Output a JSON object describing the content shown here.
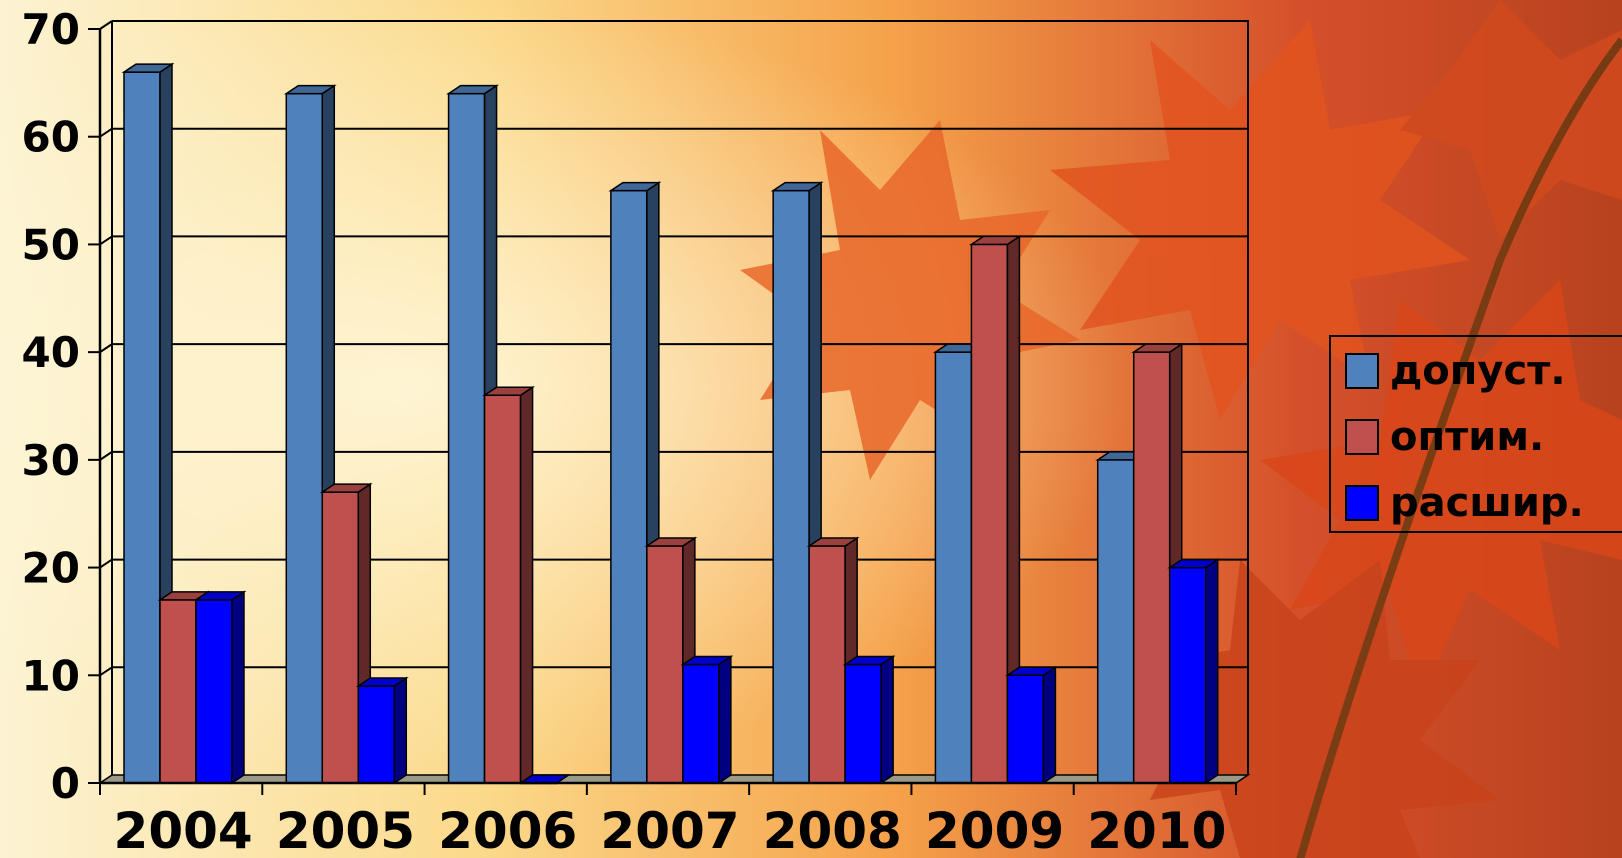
{
  "chart_data": {
    "type": "bar",
    "categories": [
      "2004",
      "2005",
      "2006",
      "2007",
      "2008",
      "2009",
      "2010"
    ],
    "series": [
      {
        "name": "допуст.",
        "values": [
          66,
          64,
          64,
          55,
          55,
          40,
          30
        ],
        "color": "#4F81BD"
      },
      {
        "name": "оптим.",
        "values": [
          17,
          27,
          36,
          22,
          22,
          50,
          40
        ],
        "color": "#C0504D"
      },
      {
        "name": "расшир.",
        "values": [
          17,
          9,
          0,
          11,
          11,
          10,
          20
        ],
        "color": "#0000FF"
      }
    ],
    "ylim": [
      0,
      70
    ],
    "yticks": [
      "0",
      "10",
      "20",
      "30",
      "40",
      "50",
      "60",
      "70"
    ],
    "grid": true,
    "legend_position": "right",
    "style": "3d-column"
  }
}
